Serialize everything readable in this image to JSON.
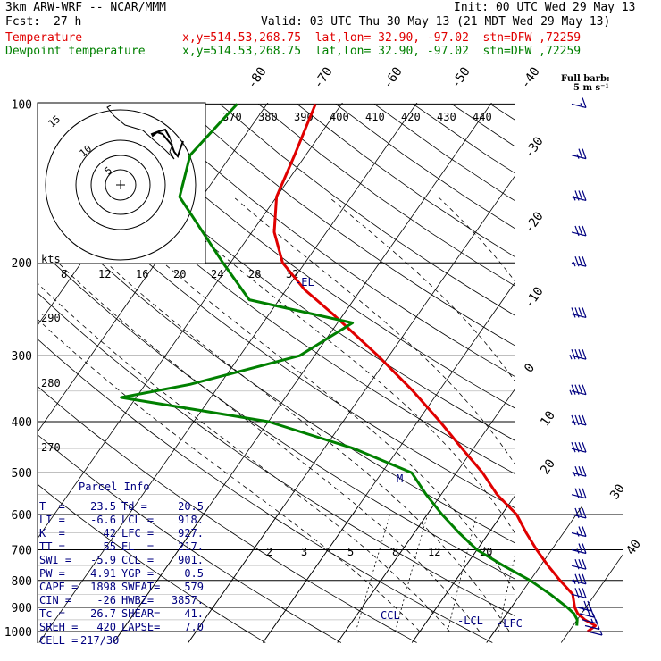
{
  "header": {
    "model": "3km ARW-WRF -- NCAR/MMM",
    "init": "Init: 00 UTC Wed 29 May 13",
    "fcst_label": "Fcst:",
    "fcst_value": "27 h",
    "valid": "Valid: 03 UTC Thu 30 May 13 (21 MDT Wed 29 May 13)",
    "temp_label": "Temperature",
    "temp_info": "x,y=514.53,268.75  lat,lon= 32.90, -97.02  stn=DFW ,72259",
    "dew_label": "Dewpoint temperature",
    "dew_info": "x,y=514.53,268.75  lat,lon= 32.90, -97.02  stn=DFW ,72259"
  },
  "colors": {
    "temperature": "#e00000",
    "dewpoint": "#008000",
    "barb": "#000080",
    "parcel_text": "#000080"
  },
  "wind_barb_title": {
    "line1": "Full barb:",
    "line2": "5 m s⁻¹"
  },
  "chart_data": {
    "type": "skew-T log-P sounding",
    "y_axis": {
      "label": "pressure (hPa)",
      "ticks": [
        100,
        200,
        300,
        400,
        500,
        600,
        700,
        800,
        900,
        1000
      ],
      "scale": "log"
    },
    "isotherm_labels_C": [
      "-80",
      "-70",
      "-60",
      "-50",
      "-40",
      "-30",
      "-20",
      "-10",
      "0",
      "10",
      "20",
      "30",
      "40"
    ],
    "dry_adiabat_labels_K": [
      "290",
      "280",
      "270"
    ],
    "theta_e_labels_K": [
      "370",
      "380",
      "390",
      "400",
      "410",
      "420",
      "430",
      "440"
    ],
    "mixing_ratio_labels": [
      "2",
      "3",
      "5",
      "8",
      "12",
      "20"
    ],
    "hodograph": {
      "unit": "kts",
      "ring_labels": [
        "5",
        "10",
        "15"
      ],
      "speed_axis": [
        "8",
        "12",
        "16",
        "20",
        "24",
        "28",
        "32"
      ]
    },
    "series": [
      {
        "name": "Temperature",
        "points": [
          [
            1000,
            22.5
          ],
          [
            975,
            23.0
          ],
          [
            950,
            21.0
          ],
          [
            925,
            19.5
          ],
          [
            900,
            18.5
          ],
          [
            850,
            17.0
          ],
          [
            800,
            14.0
          ],
          [
            750,
            11.0
          ],
          [
            700,
            8.0
          ],
          [
            650,
            5.0
          ],
          [
            600,
            2.0
          ],
          [
            550,
            -2.5
          ],
          [
            500,
            -6.5
          ],
          [
            450,
            -11.5
          ],
          [
            400,
            -17.0
          ],
          [
            350,
            -23.5
          ],
          [
            300,
            -31.5
          ],
          [
            250,
            -41.5
          ],
          [
            225,
            -47.5
          ],
          [
            200,
            -53.0
          ],
          [
            175,
            -57.0
          ],
          [
            150,
            -60.0
          ],
          [
            125,
            -61.5
          ],
          [
            100,
            -63.5
          ]
        ]
      },
      {
        "name": "Dewpoint temperature",
        "points": [
          [
            975,
            20.5
          ],
          [
            950,
            20.0
          ],
          [
            925,
            19.0
          ],
          [
            900,
            17.5
          ],
          [
            850,
            14.0
          ],
          [
            800,
            10.0
          ],
          [
            750,
            5.0
          ],
          [
            700,
            0.0
          ],
          [
            650,
            -4.0
          ],
          [
            600,
            -8.0
          ],
          [
            550,
            -12.0
          ],
          [
            500,
            -16.0
          ],
          [
            450,
            -26.0
          ],
          [
            400,
            -40.0
          ],
          [
            360,
            -62.0
          ],
          [
            340,
            -54.0
          ],
          [
            300,
            -42.0
          ],
          [
            260,
            -38.0
          ],
          [
            235,
            -54.0
          ],
          [
            200,
            -61.0
          ],
          [
            150,
            -73.0
          ],
          [
            125,
            -75.5
          ],
          [
            100,
            -74.0
          ]
        ]
      }
    ],
    "parcel_markers": [
      {
        "label": "-EL",
        "p": 217
      },
      {
        "label": "M",
        "p": 500
      },
      {
        "label": "CCL",
        "p": 901
      },
      {
        "label": "-LCL",
        "p": 918
      },
      {
        "label": "-LFC",
        "p": 927
      }
    ],
    "wind_barbs": [
      {
        "p": 1000,
        "full": 0,
        "half": 1
      },
      {
        "p": 975,
        "full": 1,
        "half": 0
      },
      {
        "p": 950,
        "full": 1,
        "half": 1
      },
      {
        "p": 925,
        "full": 2,
        "half": 0
      },
      {
        "p": 900,
        "full": 2,
        "half": 1
      },
      {
        "p": 850,
        "full": 3,
        "half": 0
      },
      {
        "p": 800,
        "full": 3,
        "half": 1
      },
      {
        "p": 750,
        "full": 3,
        "half": 0
      },
      {
        "p": 700,
        "full": 2,
        "half": 1
      },
      {
        "p": 650,
        "full": 2,
        "half": 1
      },
      {
        "p": 600,
        "full": 3,
        "half": 0
      },
      {
        "p": 550,
        "full": 3,
        "half": 0
      },
      {
        "p": 500,
        "full": 3,
        "half": 1
      },
      {
        "p": 450,
        "full": 4,
        "half": 0
      },
      {
        "p": 400,
        "full": 4,
        "half": 0
      },
      {
        "p": 350,
        "full": 4,
        "half": 1
      },
      {
        "p": 300,
        "full": 4,
        "half": 1
      },
      {
        "p": 250,
        "full": 4,
        "half": 0
      },
      {
        "p": 200,
        "full": 3,
        "half": 1
      },
      {
        "p": 175,
        "full": 3,
        "half": 0
      },
      {
        "p": 150,
        "full": 3,
        "half": 1
      },
      {
        "p": 125,
        "full": 2,
        "half": 1
      },
      {
        "p": 100,
        "full": 1,
        "half": 1
      }
    ]
  },
  "parcel_info": {
    "title": "Parcel Info",
    "rows": [
      [
        "T  =",
        "23.5",
        "Td =",
        "20.5"
      ],
      [
        "LI =",
        "-6.6",
        "LCL =",
        "918."
      ],
      [
        "K  =",
        "42",
        "LFC =",
        "927."
      ],
      [
        "TT =",
        "55",
        "EL  =",
        "217."
      ],
      [
        "SWI =",
        "-5.9",
        "CCL =",
        "901."
      ],
      [
        "PW =",
        "4.91",
        "YGP =",
        "0.5"
      ],
      [
        "CAPE =",
        "1898",
        "SWEAT=",
        "579"
      ],
      [
        "CIN =",
        "-26",
        "HWBZ=",
        "3857."
      ],
      [
        "Tc =",
        "26.7",
        "SHEAR=",
        "41."
      ],
      [
        "SREH =",
        "420",
        "LAPSE=",
        "7.0"
      ],
      [
        "CELL =",
        "217/30",
        "",
        ""
      ]
    ]
  }
}
